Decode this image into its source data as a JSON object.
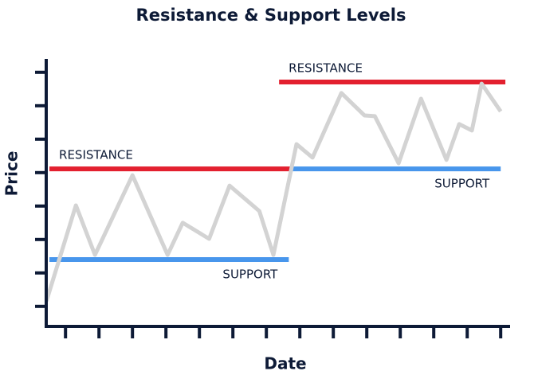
{
  "chart_data": {
    "type": "line",
    "title": "Resistance & Support Levels",
    "xlabel": "Date",
    "ylabel": "Price",
    "xlim": [
      0.4,
      14.4
    ],
    "ylim": [
      0.4,
      8.4
    ],
    "xticks": [
      1,
      2,
      3,
      4,
      5,
      6,
      7,
      8,
      9,
      10,
      11,
      12,
      13,
      14
    ],
    "yticks": [
      1,
      2,
      3,
      4,
      5,
      6,
      7,
      8
    ],
    "series": [
      {
        "color": "#d3d3d3",
        "x": [
          0.43,
          1.31,
          1.88,
          3.0,
          4.05,
          4.5,
          5.29,
          5.9,
          6.79,
          7.21,
          7.9,
          8.38,
          9.24,
          9.93,
          10.24,
          10.95,
          11.62,
          12.38,
          12.76,
          13.14,
          13.43,
          14.0
        ],
        "values": [
          1.16,
          4.02,
          2.54,
          4.92,
          2.54,
          3.5,
          3.02,
          4.61,
          3.85,
          2.54,
          5.85,
          5.45,
          7.38,
          6.71,
          6.69,
          5.28,
          7.21,
          5.38,
          6.45,
          6.26,
          7.66,
          6.83
        ]
      }
    ],
    "levels": [
      {
        "label": "RESISTANCE",
        "value": 5.11,
        "x": [
          0.52,
          7.74
        ],
        "color": "#e3202f"
      },
      {
        "label": "SUPPORT",
        "value": 2.4,
        "x": [
          0.52,
          7.67
        ],
        "color": "#4896ec"
      },
      {
        "label": "RESISTANCE",
        "value": 7.71,
        "x": [
          7.38,
          14.14
        ],
        "color": "#e3202f"
      },
      {
        "label": "SUPPORT",
        "value": 5.11,
        "x": [
          7.74,
          14.0
        ],
        "color": "#4896ec"
      }
    ]
  }
}
